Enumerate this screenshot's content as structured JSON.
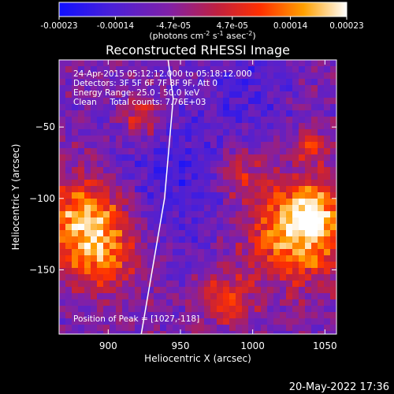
{
  "chart_data": {
    "type": "heatmap",
    "colorbar": {
      "ticks": [
        "-0.00023",
        "-0.00014",
        "-4.7e-05",
        "4.7e-05",
        "0.00014",
        "0.00023"
      ],
      "tick_values": [
        -0.00023,
        -0.00014,
        -4.7e-05,
        4.7e-05,
        0.00014,
        0.00023
      ],
      "range": [
        -0.00023,
        0.00023
      ],
      "unit_line1": "(photons cm",
      "unit_exp1": "-2",
      "unit_mid1": " s",
      "unit_exp2": "-1",
      "unit_mid2": " asec",
      "unit_exp3": "-2",
      "unit_close": ")"
    },
    "title": "Reconstructed RHESSI Image",
    "info": [
      "24-Apr-2015 05:12:12.000 to 05:18:12.000",
      "Detectors: 3F 5F 6F 7F 8F 9F, Att 0",
      "Energy Range: 25.0 - 50.0 keV",
      "Clean     Total counts: 7.76E+03"
    ],
    "peak_label": "Position of Peak = [1027,-118]",
    "peak_position": [
      1027,
      -118
    ],
    "xlabel": "Heliocentric X (arcsec)",
    "ylabel": "Heliocentric Y (arcsec)",
    "xlim": [
      866,
      1058
    ],
    "ylim": [
      -195,
      -3
    ],
    "xticks": [
      900,
      950,
      1000,
      1050
    ],
    "yticks": [
      -50,
      -100,
      -150
    ],
    "limb_points": [
      [
        940,
        8
      ],
      [
        945,
        -30
      ],
      [
        939,
        -100
      ],
      [
        922,
        -200
      ]
    ]
  },
  "footer": {
    "date": "20-May-2022 17:36"
  }
}
